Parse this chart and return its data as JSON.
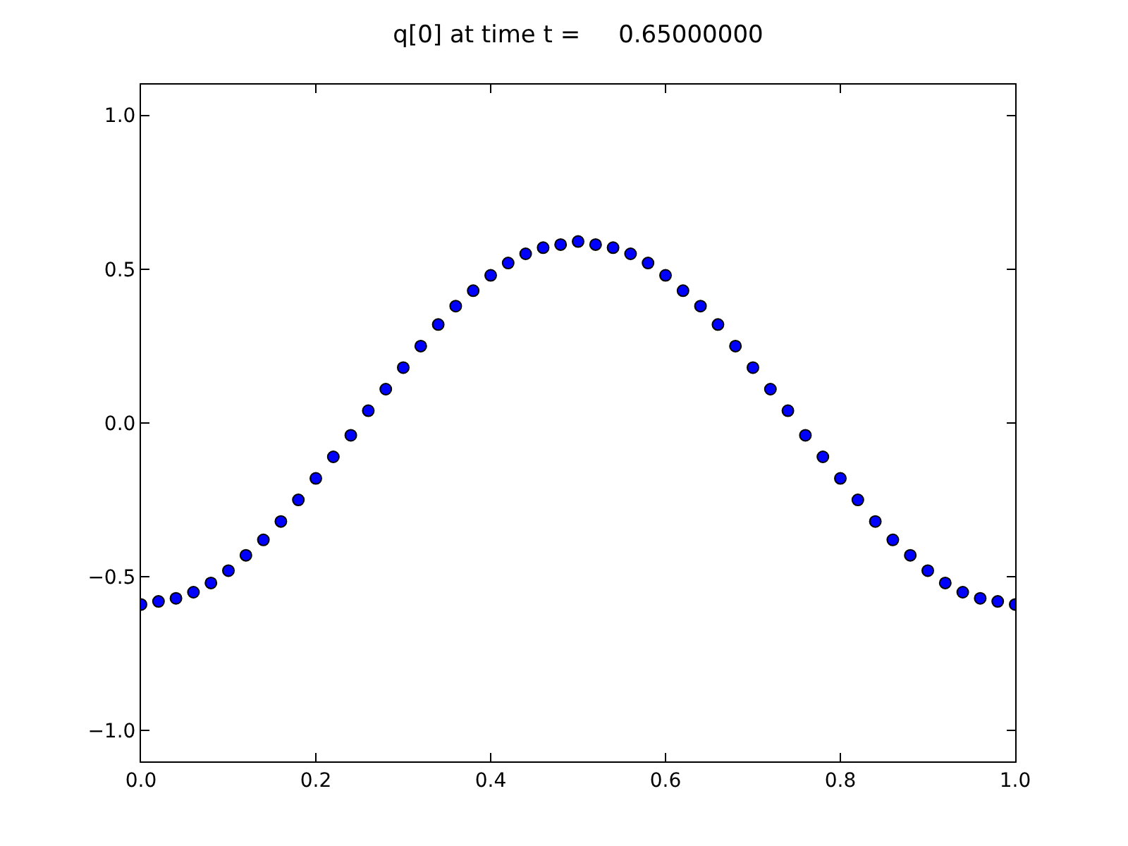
{
  "chart_data": {
    "type": "scatter",
    "title": "q[0] at time t =     0.65000000",
    "x": [
      0,
      0.02,
      0.04,
      0.06,
      0.08,
      0.1,
      0.12,
      0.14,
      0.16,
      0.18,
      0.2,
      0.22,
      0.24,
      0.26,
      0.28,
      0.3,
      0.32,
      0.34,
      0.36,
      0.38,
      0.4,
      0.42,
      0.44,
      0.46,
      0.48,
      0.5,
      0.52,
      0.54,
      0.56,
      0.58,
      0.6,
      0.62,
      0.64,
      0.66,
      0.68,
      0.7,
      0.72,
      0.74,
      0.76,
      0.78,
      0.8,
      0.82,
      0.84,
      0.86,
      0.88,
      0.9,
      0.92,
      0.94,
      0.96,
      0.98,
      1.0
    ],
    "series": [
      {
        "color": "#0000ff",
        "values": [
          -0.59,
          -0.58,
          -0.57,
          -0.55,
          -0.52,
          -0.48,
          -0.43,
          -0.38,
          -0.32,
          -0.25,
          -0.18,
          -0.11,
          -0.04,
          0.04,
          0.11,
          0.18,
          0.25,
          0.32,
          0.38,
          0.43,
          0.48,
          0.52,
          0.55,
          0.57,
          0.58,
          0.59,
          0.58,
          0.57,
          0.55,
          0.52,
          0.48,
          0.43,
          0.38,
          0.32,
          0.25,
          0.18,
          0.11,
          0.04,
          -0.04,
          -0.11,
          -0.18,
          -0.25,
          -0.32,
          -0.38,
          -0.43,
          -0.48,
          -0.52,
          -0.55,
          -0.57,
          -0.58,
          -0.59
        ]
      }
    ],
    "xlim": [
      0,
      1.0
    ],
    "xticks": [
      {
        "value": 0,
        "label": "0.0"
      },
      0.2,
      0.4,
      0.6,
      0.8,
      {
        "value": 1.0,
        "label": "1.0"
      }
    ],
    "ylim": [
      -1.1,
      1.1
    ],
    "yticks": [
      {
        "value": -1.0,
        "label": "−1.0"
      },
      {
        "value": -0.5,
        "label": "−0.5"
      },
      {
        "value": 0,
        "label": "0.0"
      },
      0.5,
      {
        "value": 1.0,
        "label": "1.0"
      }
    ],
    "marker": "circle"
  }
}
